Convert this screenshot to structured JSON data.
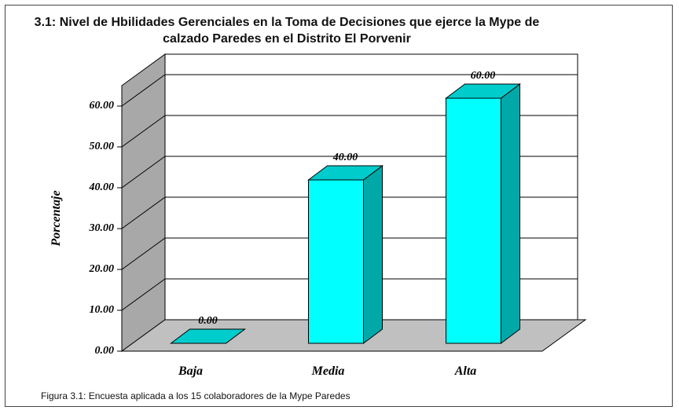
{
  "chart_data": {
    "type": "bar3d",
    "title": "3.1: Nivel de Hbilidades Gerenciales en la Toma de Decisiones que ejerce la Mype de calzado Paredes en el Distrito El Porvenir",
    "ylabel": "Porcentaje",
    "categories": [
      "Baja",
      "Media",
      "Alta"
    ],
    "values": [
      0,
      40,
      60
    ],
    "value_labels": [
      "0.00",
      "40.00",
      "60.00"
    ],
    "color": "#00ffff",
    "ylim": [
      0,
      65
    ],
    "yticks": [
      {
        "value": 0,
        "label": "0.00"
      },
      {
        "value": 10,
        "label": "10.00"
      },
      {
        "value": 20,
        "label": "20.00"
      },
      {
        "value": 30,
        "label": "30.00"
      },
      {
        "value": 40,
        "label": "40.00"
      },
      {
        "value": 50,
        "label": "50.00"
      },
      {
        "value": 60,
        "label": "60.00"
      }
    ],
    "grid": true,
    "caption": "Figura 3.1: Encuesta aplicada a los 15 colaboradores de la Mype Paredes"
  }
}
